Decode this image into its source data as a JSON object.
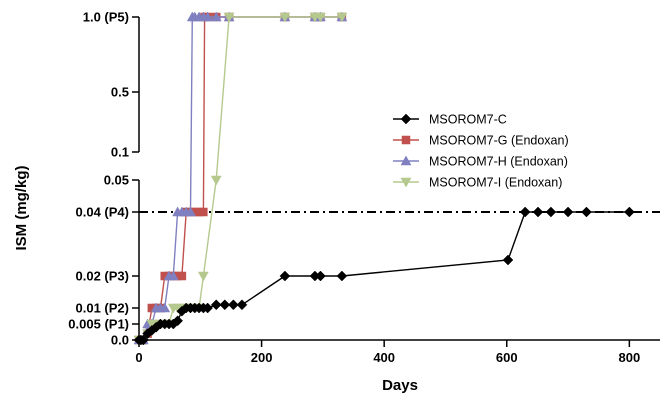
{
  "chart_data": {
    "type": "line",
    "title": "",
    "xlabel": "Days",
    "ylabel": "ISM (mg/kg)",
    "xlim": [
      0,
      850
    ],
    "x_ticks": [
      0,
      200,
      400,
      600,
      800
    ],
    "y_axis_segments": [
      {
        "name": "lower",
        "range": [
          0,
          0.05
        ],
        "ticks": [
          {
            "value": 0,
            "label": "0.0"
          },
          {
            "value": 0.005,
            "label": "0.005 (P1)"
          },
          {
            "value": 0.01,
            "label": "0.01 (P2)"
          },
          {
            "value": 0.02,
            "label": "0.02 (P3)"
          },
          {
            "value": 0.04,
            "label": "0.04 (P4)"
          },
          {
            "value": 0.05,
            "label": "0.05"
          }
        ]
      },
      {
        "name": "upper",
        "range": [
          0.1,
          1.0
        ],
        "ticks": [
          {
            "value": 0.1,
            "label": "0.1"
          },
          {
            "value": 0.5,
            "label": "0.5"
          },
          {
            "value": 1.0,
            "label": "1.0 (P5)"
          }
        ]
      }
    ],
    "reference_line": {
      "y": 0.04,
      "style": "dash-dot"
    },
    "grid": false,
    "legend_position": "right",
    "series": [
      {
        "name": "MSOROM7-C",
        "color": "#000000",
        "marker": "diamond",
        "points": [
          [
            0,
            0
          ],
          [
            3,
            0
          ],
          [
            7,
            0
          ],
          [
            14,
            0.002
          ],
          [
            21,
            0.003
          ],
          [
            28,
            0.004
          ],
          [
            35,
            0.005
          ],
          [
            42,
            0.005
          ],
          [
            49,
            0.005
          ],
          [
            56,
            0.005
          ],
          [
            63,
            0.006
          ],
          [
            70,
            0.009
          ],
          [
            77,
            0.01
          ],
          [
            84,
            0.01
          ],
          [
            91,
            0.01
          ],
          [
            98,
            0.01
          ],
          [
            105,
            0.01
          ],
          [
            112,
            0.01
          ],
          [
            126,
            0.011
          ],
          [
            140,
            0.011
          ],
          [
            154,
            0.011
          ],
          [
            168,
            0.011
          ],
          [
            238,
            0.02
          ],
          [
            287,
            0.02
          ],
          [
            296,
            0.02
          ],
          [
            331,
            0.02
          ],
          [
            602,
            0.025
          ],
          [
            630,
            0.04
          ],
          [
            651,
            0.04
          ],
          [
            672,
            0.04
          ],
          [
            700,
            0.04
          ],
          [
            730,
            0.04
          ],
          [
            800,
            0.04
          ]
        ]
      },
      {
        "name": "MSOROM7-G (Endoxan)",
        "color": "#c0504d",
        "marker": "square",
        "points": [
          [
            0,
            0
          ],
          [
            7,
            0
          ],
          [
            14,
            0.002
          ],
          [
            21,
            0.01
          ],
          [
            28,
            0.01
          ],
          [
            35,
            0.01
          ],
          [
            42,
            0.02
          ],
          [
            49,
            0.02
          ],
          [
            56,
            0.02
          ],
          [
            63,
            0.02
          ],
          [
            70,
            0.02
          ],
          [
            77,
            0.04
          ],
          [
            84,
            0.04
          ],
          [
            91,
            0.04
          ],
          [
            98,
            0.04
          ],
          [
            105,
            0.04
          ],
          [
            107,
            1.0
          ],
          [
            112,
            1.0
          ],
          [
            126,
            1.0
          ],
          [
            147,
            1.0
          ],
          [
            238,
            1.0
          ],
          [
            287,
            1.0
          ],
          [
            296,
            1.0
          ],
          [
            331,
            1.0
          ]
        ]
      },
      {
        "name": "MSOROM7-H (Endoxan)",
        "color": "#8080c0",
        "marker": "triangle-up",
        "points": [
          [
            0,
            0
          ],
          [
            7,
            0
          ],
          [
            14,
            0.005
          ],
          [
            21,
            0.005
          ],
          [
            28,
            0.01
          ],
          [
            35,
            0.01
          ],
          [
            42,
            0.01
          ],
          [
            49,
            0.02
          ],
          [
            56,
            0.02
          ],
          [
            63,
            0.04
          ],
          [
            70,
            0.04
          ],
          [
            77,
            0.04
          ],
          [
            84,
            0.04
          ],
          [
            87,
            1.0
          ],
          [
            91,
            1.0
          ],
          [
            98,
            1.0
          ],
          [
            105,
            1.0
          ],
          [
            112,
            1.0
          ],
          [
            126,
            1.0
          ],
          [
            147,
            1.0
          ],
          [
            238,
            1.0
          ],
          [
            287,
            1.0
          ],
          [
            296,
            1.0
          ],
          [
            331,
            1.0
          ]
        ]
      },
      {
        "name": "MSOROM7-I (Endoxan)",
        "color": "#b5c98e",
        "marker": "triangle-down",
        "points": [
          [
            0,
            0
          ],
          [
            7,
            0
          ],
          [
            14,
            0.002
          ],
          [
            21,
            0.005
          ],
          [
            28,
            0.005
          ],
          [
            35,
            0.005
          ],
          [
            42,
            0.005
          ],
          [
            49,
            0.005
          ],
          [
            56,
            0.01
          ],
          [
            63,
            0.01
          ],
          [
            70,
            0.01
          ],
          [
            77,
            0.01
          ],
          [
            84,
            0.01
          ],
          [
            91,
            0.01
          ],
          [
            98,
            0.01
          ],
          [
            105,
            0.02
          ],
          [
            126,
            0.05
          ],
          [
            147,
            1.0
          ],
          [
            238,
            1.0
          ],
          [
            287,
            1.0
          ],
          [
            296,
            1.0
          ],
          [
            331,
            1.0
          ]
        ]
      }
    ]
  }
}
